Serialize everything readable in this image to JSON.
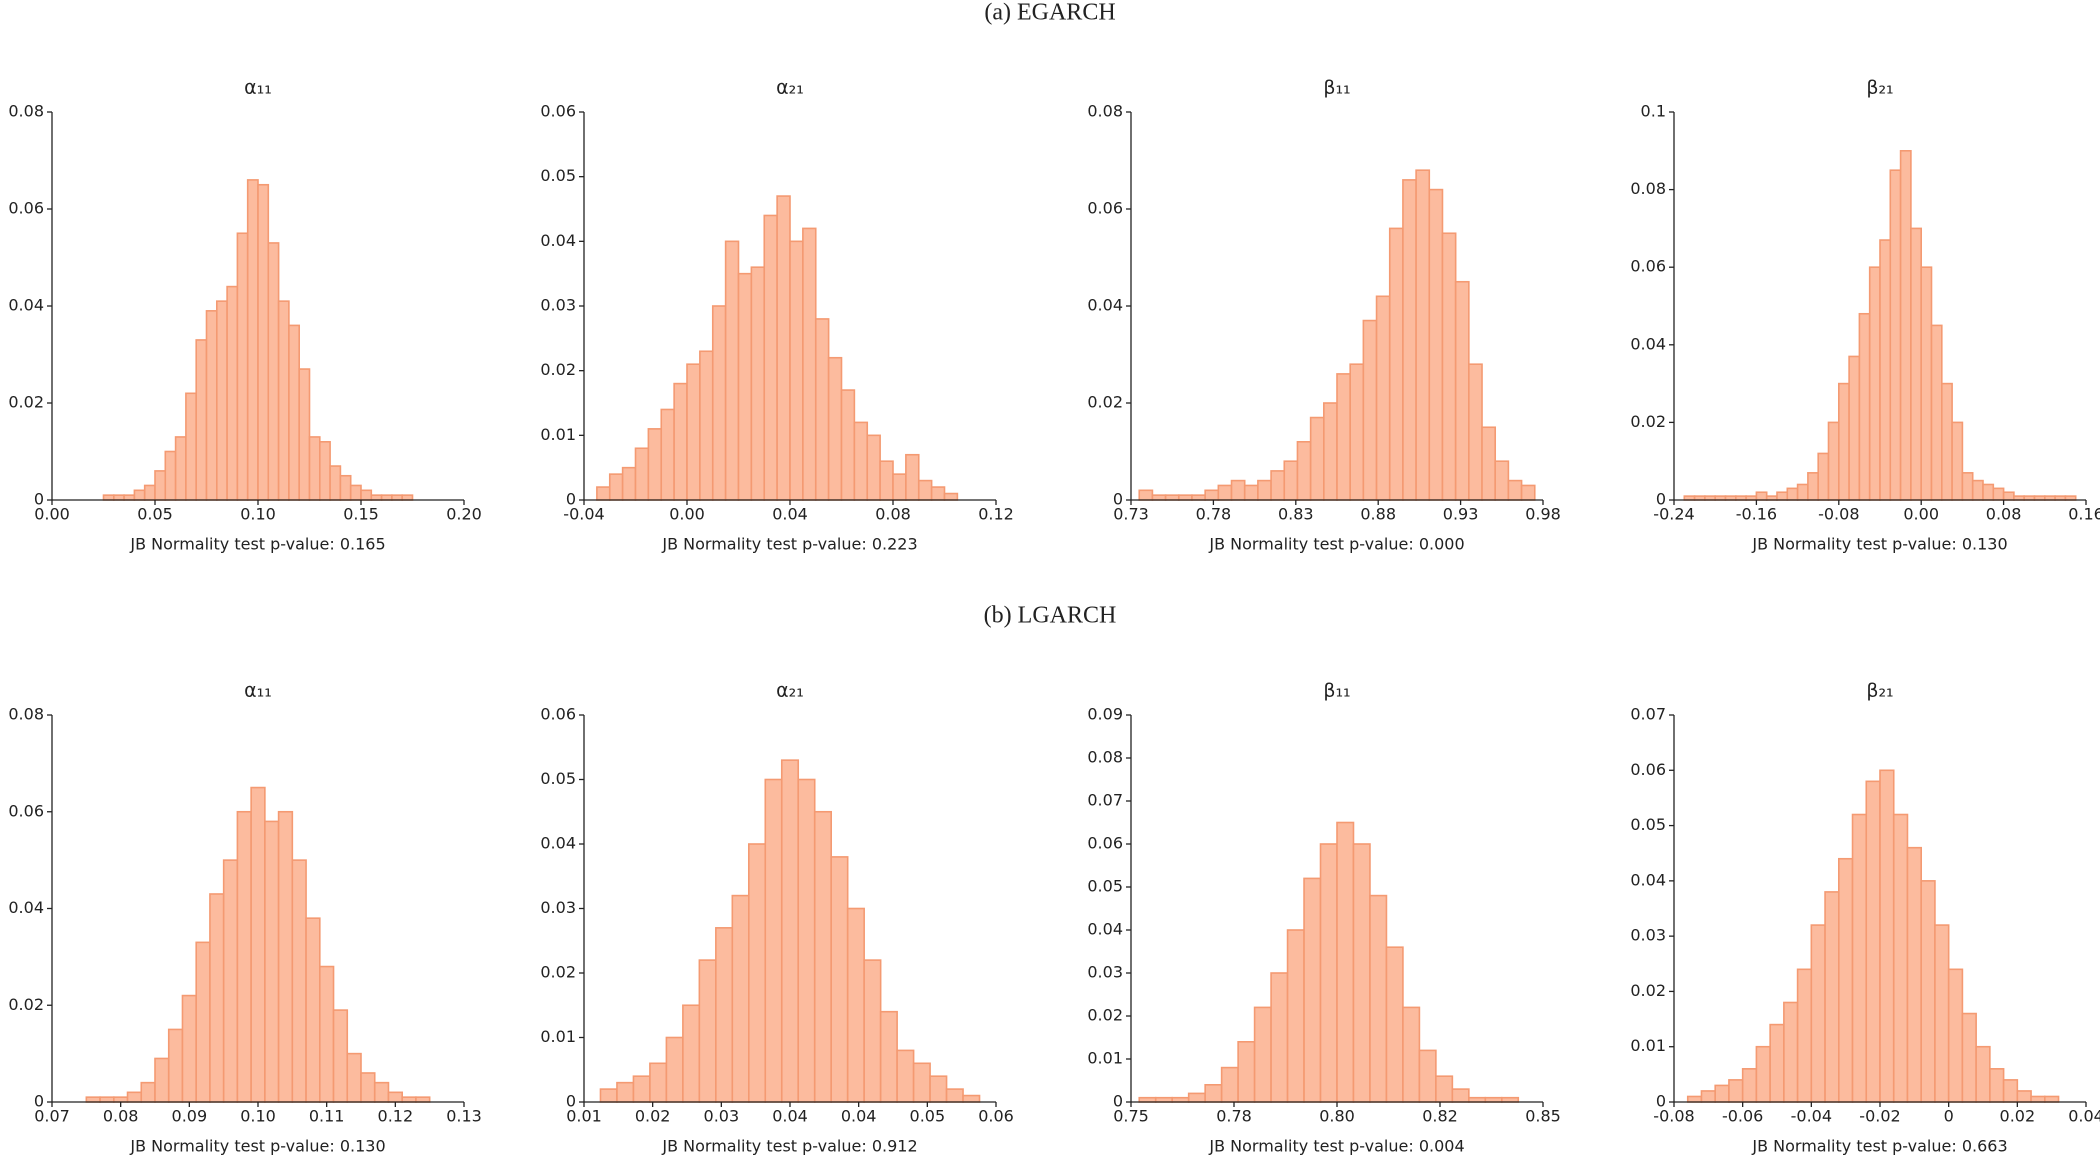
{
  "section_titles": [
    "(a) EGARCH",
    "(b) LGARCH"
  ],
  "chart_data": [
    {
      "type": "histogram",
      "title": "α₁₁",
      "xlabel": "JB Normality test p-value: 0.165",
      "color": "#fcbb9e",
      "edgecolor": "#f49a72",
      "bins": [
        0.025,
        0.03,
        0.035,
        0.04,
        0.045,
        0.05,
        0.055,
        0.06,
        0.065,
        0.07,
        0.075,
        0.08,
        0.085,
        0.09,
        0.095,
        0.1,
        0.105,
        0.11,
        0.115,
        0.12,
        0.125,
        0.13,
        0.135,
        0.14,
        0.145,
        0.15,
        0.155,
        0.16,
        0.165,
        0.17,
        0.175
      ],
      "values": [
        0.001,
        0.001,
        0.001,
        0.002,
        0.003,
        0.006,
        0.01,
        0.013,
        0.022,
        0.033,
        0.039,
        0.041,
        0.044,
        0.055,
        0.066,
        0.065,
        0.053,
        0.041,
        0.036,
        0.027,
        0.013,
        0.012,
        0.007,
        0.005,
        0.003,
        0.002,
        0.001,
        0.001,
        0.001,
        0.001
      ],
      "xlim": [
        0,
        0.2
      ],
      "xticks": [
        {
          "value": 0,
          "label": "0.00"
        },
        0.05,
        {
          "value": 0.1,
          "label": "0.10"
        },
        0.15,
        {
          "value": 0.2,
          "label": "0.20"
        }
      ],
      "ylim": [
        0,
        0.08
      ],
      "yticks": [
        0,
        0.02,
        0.04,
        0.06,
        0.08
      ]
    },
    {
      "type": "histogram",
      "title": "α₂₁",
      "xlabel": "JB Normality test p-value: 0.223",
      "color": "#fcbb9e",
      "edgecolor": "#f49a72",
      "bins": [
        -0.035,
        -0.03,
        -0.025,
        -0.02,
        -0.015,
        -0.01,
        -0.005,
        0,
        0.005,
        0.01,
        0.015,
        0.02,
        0.025,
        0.03,
        0.035,
        0.04,
        0.045,
        0.05,
        0.055,
        0.06,
        0.065,
        0.07,
        0.075,
        0.08,
        0.085,
        0.09,
        0.095,
        0.1,
        0.105
      ],
      "values": [
        0.002,
        0.004,
        0.005,
        0.008,
        0.011,
        0.014,
        0.018,
        0.021,
        0.023,
        0.03,
        0.04,
        0.035,
        0.036,
        0.044,
        0.047,
        0.04,
        0.042,
        0.028,
        0.022,
        0.017,
        0.012,
        0.01,
        0.006,
        0.004,
        0.007,
        0.003,
        0.002,
        0.001
      ],
      "xlim": [
        -0.04,
        0.12
      ],
      "xticks": [
        -0.04,
        {
          "value": 0,
          "label": "0.00"
        },
        0.04,
        0.08,
        0.12
      ],
      "ylim": [
        0,
        0.06
      ],
      "yticks": [
        0,
        0.01,
        0.02,
        0.03,
        0.04,
        0.05,
        0.06
      ]
    },
    {
      "type": "histogram",
      "title": "β₁₁",
      "xlabel": "JB Normality test p-value: 0.000",
      "color": "#fcbb9e",
      "edgecolor": "#f49a72",
      "bins": [
        0.735,
        0.743,
        0.751,
        0.759,
        0.767,
        0.775,
        0.783,
        0.791,
        0.799,
        0.807,
        0.815,
        0.823,
        0.831,
        0.839,
        0.847,
        0.855,
        0.863,
        0.871,
        0.879,
        0.887,
        0.895,
        0.903,
        0.911,
        0.919,
        0.927,
        0.935,
        0.943,
        0.951,
        0.959,
        0.967,
        0.975
      ],
      "values": [
        0.002,
        0.001,
        0.001,
        0.001,
        0.001,
        0.002,
        0.003,
        0.004,
        0.003,
        0.004,
        0.006,
        0.008,
        0.012,
        0.017,
        0.02,
        0.026,
        0.028,
        0.037,
        0.042,
        0.056,
        0.066,
        0.068,
        0.064,
        0.055,
        0.045,
        0.028,
        0.015,
        0.008,
        0.004,
        0.003
      ],
      "xlim": [
        0.73,
        0.98
      ],
      "xticks": [
        0.73,
        0.78,
        0.83,
        0.88,
        0.93,
        0.98
      ],
      "ylim": [
        0,
        0.08
      ],
      "yticks": [
        0,
        0.02,
        0.04,
        0.06,
        0.08
      ]
    },
    {
      "type": "histogram",
      "title": "β₂₁",
      "xlabel": "JB Normality test p-value: 0.130",
      "color": "#fcbb9e",
      "edgecolor": "#f49a72",
      "bins": [
        -0.23,
        -0.22,
        -0.21,
        -0.2,
        -0.19,
        -0.18,
        -0.17,
        -0.16,
        -0.15,
        -0.14,
        -0.13,
        -0.12,
        -0.11,
        -0.1,
        -0.09,
        -0.08,
        -0.07,
        -0.06,
        -0.05,
        -0.04,
        -0.03,
        -0.02,
        -0.01,
        0,
        0.01,
        0.02,
        0.03,
        0.04,
        0.05,
        0.06,
        0.07,
        0.08,
        0.09,
        0.1,
        0.11,
        0.12,
        0.13,
        0.14,
        0.15
      ],
      "values": [
        0.001,
        0.001,
        0.001,
        0.001,
        0.001,
        0.001,
        0.001,
        0.002,
        0.001,
        0.002,
        0.003,
        0.004,
        0.007,
        0.012,
        0.02,
        0.03,
        0.037,
        0.048,
        0.06,
        0.067,
        0.085,
        0.09,
        0.07,
        0.06,
        0.045,
        0.03,
        0.02,
        0.007,
        0.005,
        0.004,
        0.003,
        0.002,
        0.001,
        0.001,
        0.001,
        0.001,
        0.001,
        0.001
      ],
      "xlim": [
        -0.24,
        0.16
      ],
      "xticks": [
        -0.24,
        -0.16,
        -0.08,
        {
          "value": 0,
          "label": "0.00"
        },
        0.08,
        0.16
      ],
      "ylim": [
        0,
        0.1
      ],
      "yticks": [
        0,
        0.02,
        0.04,
        0.06,
        0.08,
        0.1
      ]
    },
    {
      "type": "histogram",
      "title": "α₁₁",
      "xlabel": "JB Normality test p-value: 0.130",
      "color": "#fcbb9e",
      "edgecolor": "#f49a72",
      "bins": [
        0.075,
        0.077,
        0.079,
        0.081,
        0.083,
        0.085,
        0.087,
        0.089,
        0.091,
        0.093,
        0.095,
        0.097,
        0.099,
        0.101,
        0.103,
        0.105,
        0.107,
        0.109,
        0.111,
        0.113,
        0.115,
        0.117,
        0.119,
        0.121,
        0.123,
        0.125
      ],
      "values": [
        0.001,
        0.001,
        0.001,
        0.002,
        0.004,
        0.009,
        0.015,
        0.022,
        0.033,
        0.043,
        0.05,
        0.06,
        0.065,
        0.058,
        0.06,
        0.05,
        0.038,
        0.028,
        0.019,
        0.01,
        0.006,
        0.004,
        0.002,
        0.001,
        0.001
      ],
      "xlim": [
        0.07,
        0.13
      ],
      "xticks": [
        0.07,
        0.08,
        0.09,
        {
          "value": 0.1,
          "label": "0.10"
        },
        0.11,
        0.12,
        0.13
      ],
      "ylim": [
        0,
        0.08
      ],
      "yticks": [
        0,
        0.02,
        0.04,
        0.06,
        0.08
      ]
    },
    {
      "type": "histogram",
      "title": "α₂₁",
      "xlabel": "JB Normality test p-value: 0.912",
      "color": "#fcbb9e",
      "edgecolor": "#f49a72",
      "bins": [
        0.012,
        0.014,
        0.016,
        0.018,
        0.02,
        0.022,
        0.024,
        0.026,
        0.028,
        0.03,
        0.032,
        0.034,
        0.036,
        0.038,
        0.04,
        0.042,
        0.044,
        0.046,
        0.048,
        0.05,
        0.052,
        0.054,
        0.056,
        0.058
      ],
      "values": [
        0.002,
        0.003,
        0.004,
        0.006,
        0.01,
        0.015,
        0.022,
        0.027,
        0.032,
        0.04,
        0.05,
        0.053,
        0.05,
        0.045,
        0.038,
        0.03,
        0.022,
        0.014,
        0.008,
        0.006,
        0.004,
        0.002,
        0.001
      ],
      "xlim": [
        0.01,
        0.06
      ],
      "xticks": [
        0.01,
        {
          "value": 0.018333,
          "label": "0.02"
        },
        {
          "value": 0.026667,
          "label": "0.03"
        },
        {
          "value": 0.035,
          "label": "0.04"
        },
        {
          "value": 0.043333,
          "label": "0.04"
        },
        {
          "value": 0.051667,
          "label": "0.05"
        },
        0.06
      ],
      "ylim": [
        0,
        0.06
      ],
      "yticks": [
        0,
        0.01,
        0.02,
        0.03,
        0.04,
        0.05,
        0.06
      ]
    },
    {
      "type": "histogram",
      "title": "β₁₁",
      "xlabel": "JB Normality test p-value: 0.004",
      "color": "#fcbb9e",
      "edgecolor": "#f49a72",
      "bins": [
        0.752,
        0.756,
        0.76,
        0.764,
        0.768,
        0.772,
        0.776,
        0.78,
        0.784,
        0.788,
        0.792,
        0.796,
        0.8,
        0.804,
        0.808,
        0.812,
        0.816,
        0.82,
        0.824,
        0.828,
        0.832,
        0.836,
        0.84,
        0.844
      ],
      "values": [
        0.001,
        0.001,
        0.001,
        0.002,
        0.004,
        0.008,
        0.014,
        0.022,
        0.03,
        0.04,
        0.052,
        0.06,
        0.065,
        0.06,
        0.048,
        0.036,
        0.022,
        0.012,
        0.006,
        0.003,
        0.001,
        0.001,
        0.001
      ],
      "xlim": [
        0.75,
        0.85
      ],
      "xticks": [
        0.75,
        {
          "value": 0.775,
          "label": "0.78"
        },
        {
          "value": 0.8,
          "label": "0.80"
        },
        {
          "value": 0.825,
          "label": "0.82"
        },
        0.85
      ],
      "ylim": [
        0,
        0.09
      ],
      "yticks": [
        0,
        0.01,
        0.02,
        0.03,
        0.04,
        0.05,
        0.06,
        0.07,
        0.08,
        0.09
      ]
    },
    {
      "type": "histogram",
      "title": "β₂₁",
      "xlabel": "JB Normality test p-value: 0.663",
      "color": "#fcbb9e",
      "edgecolor": "#f49a72",
      "bins": [
        -0.076,
        -0.072,
        -0.068,
        -0.064,
        -0.06,
        -0.056,
        -0.052,
        -0.048,
        -0.044,
        -0.04,
        -0.036,
        -0.032,
        -0.028,
        -0.024,
        -0.02,
        -0.016,
        -0.012,
        -0.008,
        -0.004,
        0,
        0.004,
        0.008,
        0.012,
        0.016,
        0.02,
        0.024,
        0.028,
        0.032
      ],
      "values": [
        0.001,
        0.002,
        0.003,
        0.004,
        0.006,
        0.01,
        0.014,
        0.018,
        0.024,
        0.032,
        0.038,
        0.044,
        0.052,
        0.058,
        0.06,
        0.052,
        0.046,
        0.04,
        0.032,
        0.024,
        0.016,
        0.01,
        0.006,
        0.004,
        0.002,
        0.001,
        0.001
      ],
      "xlim": [
        -0.08,
        0.04
      ],
      "xticks": [
        -0.08,
        -0.06,
        -0.04,
        -0.02,
        0,
        0.02,
        0.04
      ],
      "ylim": [
        0,
        0.07
      ],
      "yticks": [
        0,
        0.01,
        0.02,
        0.03,
        0.04,
        0.05,
        0.06,
        0.07
      ]
    }
  ]
}
